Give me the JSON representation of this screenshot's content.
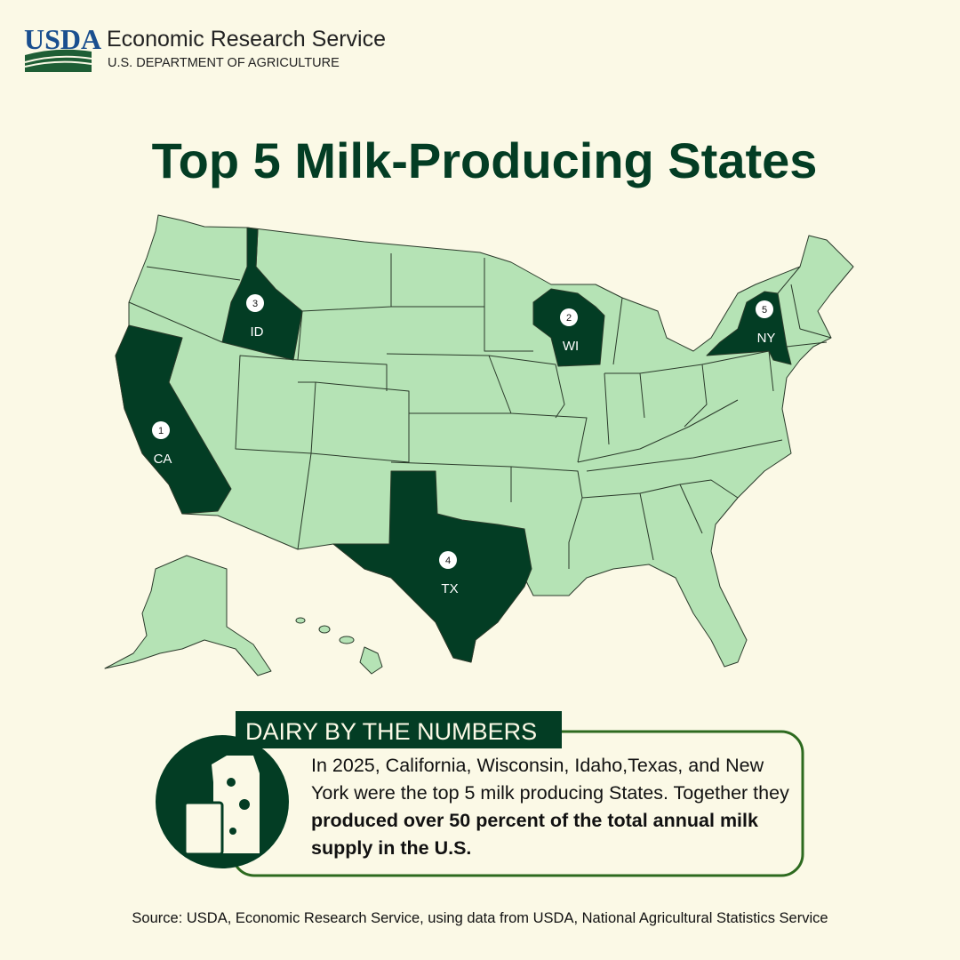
{
  "header": {
    "logo": "USDA",
    "agency": "Economic Research Service",
    "department": "U.S. DEPARTMENT OF AGRICULTURE"
  },
  "title": "Top 5 Milk-Producing States",
  "map": {
    "states": [
      {
        "rank": 1,
        "label": "CA"
      },
      {
        "rank": 2,
        "label": "WI"
      },
      {
        "rank": 3,
        "label": "ID"
      },
      {
        "rank": 4,
        "label": "TX"
      },
      {
        "rank": 5,
        "label": "NY"
      }
    ]
  },
  "callout": {
    "heading": "DAIRY BY THE NUMBERS",
    "text": "In 2025, California, Wisconsin, Idaho,Texas, and New York were the top 5 milk producing States. Together they",
    "bold": "produced over 50 percent of the total annual milk supply in the U.S."
  },
  "source": "Source: USDA, Economic Research Service, using data from USDA, National Agricultural Statistics Service"
}
